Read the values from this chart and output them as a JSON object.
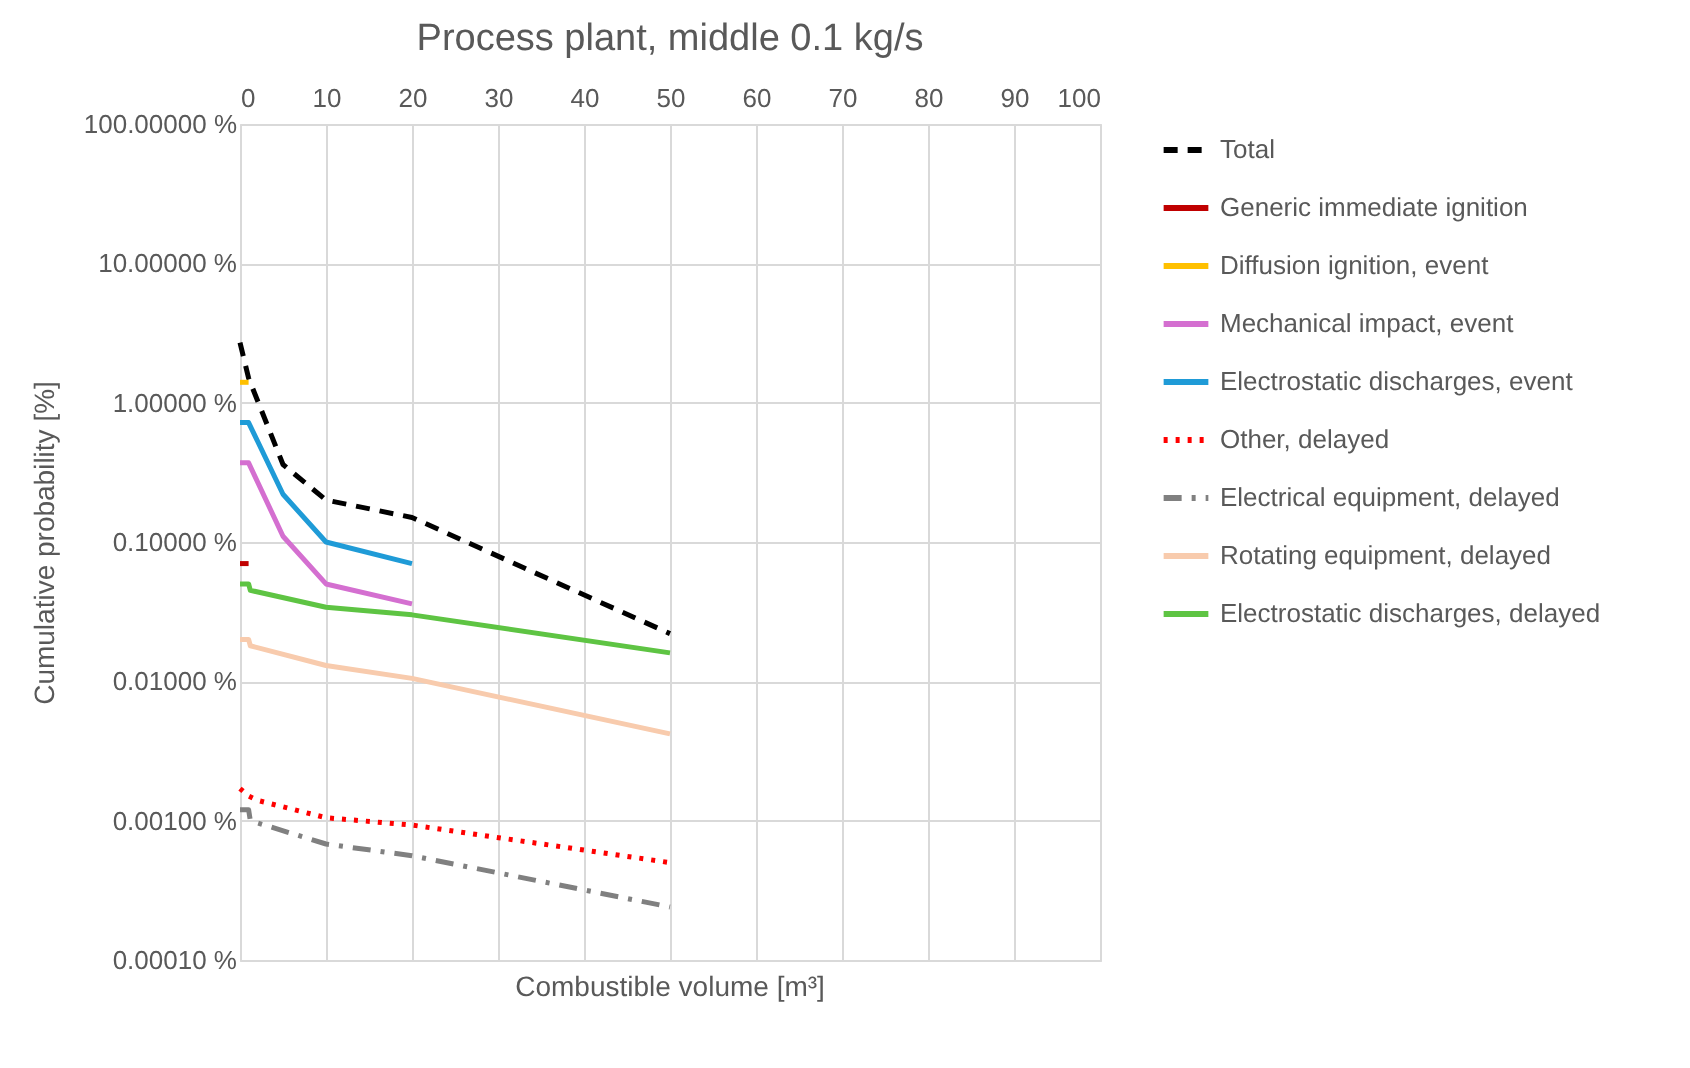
{
  "chart_data": {
    "type": "line",
    "title": "Process plant, middle 0.1 kg/s",
    "xlabel": "Combustible volume [m³]",
    "ylabel": "Cumulative probability [%]",
    "xlim": [
      0,
      100
    ],
    "xticks": [
      0,
      10,
      20,
      30,
      40,
      50,
      60,
      70,
      80,
      90,
      100
    ],
    "ylim": [
      0.0001,
      100
    ],
    "yticks": [
      {
        "value": 0.0001,
        "label": "0.00010 %"
      },
      {
        "value": 0.001,
        "label": "0.00100 %"
      },
      {
        "value": 0.01,
        "label": "0.01000 %"
      },
      {
        "value": 0.1,
        "label": "0.10000 %"
      },
      {
        "value": 1,
        "label": "1.00000 %"
      },
      {
        "value": 10,
        "label": "10.00000 %"
      },
      {
        "value": 100,
        "label": "100.00000 %"
      }
    ],
    "log": "y",
    "grid": true,
    "legend": "right",
    "marker": "none",
    "series": [
      {
        "name": "Total",
        "color": "#000000",
        "line_style": "dashed",
        "x": [
          0,
          1,
          5,
          10,
          20,
          50
        ],
        "values": [
          2.7,
          1.5,
          0.36,
          0.2,
          0.15,
          0.022
        ]
      },
      {
        "name": "Generic immediate ignition",
        "color": "#c00000",
        "line_style": "solid",
        "x": [
          0,
          1
        ],
        "values": [
          0.07,
          0.07
        ]
      },
      {
        "name": "Diffusion ignition, event",
        "color": "#ffc000",
        "line_style": "solid",
        "x": [
          0,
          1
        ],
        "values": [
          1.4,
          1.4
        ]
      },
      {
        "name": "Mechanical impact, event",
        "color": "#d46fd0",
        "line_style": "solid",
        "x": [
          0,
          1,
          5,
          10,
          20
        ],
        "values": [
          0.37,
          0.37,
          0.11,
          0.05,
          0.036
        ]
      },
      {
        "name": "Electrostatic discharges, event",
        "color": "#1f9bd7",
        "line_style": "solid",
        "x": [
          0,
          1,
          5,
          10,
          20
        ],
        "values": [
          0.72,
          0.72,
          0.22,
          0.1,
          0.07
        ]
      },
      {
        "name": "Other, delayed",
        "color": "#ff0000",
        "line_style": "dotted",
        "x": [
          0,
          1,
          2,
          10,
          20,
          50
        ],
        "values": [
          0.0017,
          0.0015,
          0.0014,
          0.00105,
          0.00093,
          0.0005
        ]
      },
      {
        "name": "Electrical equipment, delayed",
        "color": "#808080",
        "line_style": "dashdot",
        "x": [
          0,
          1,
          1.2,
          10,
          20,
          50
        ],
        "values": [
          0.0012,
          0.0012,
          0.001,
          0.00068,
          0.00056,
          0.00024
        ]
      },
      {
        "name": "Rotating equipment, delayed",
        "color": "#f8cbad",
        "line_style": "solid",
        "x": [
          0,
          1,
          1.2,
          10,
          20,
          50
        ],
        "values": [
          0.02,
          0.02,
          0.018,
          0.013,
          0.0105,
          0.0042
        ]
      },
      {
        "name": "Electrostatic discharges, delayed",
        "color": "#5ec443",
        "line_style": "solid",
        "x": [
          0,
          1,
          1.2,
          10,
          20,
          50
        ],
        "values": [
          0.05,
          0.05,
          0.045,
          0.034,
          0.03,
          0.016
        ]
      }
    ]
  }
}
